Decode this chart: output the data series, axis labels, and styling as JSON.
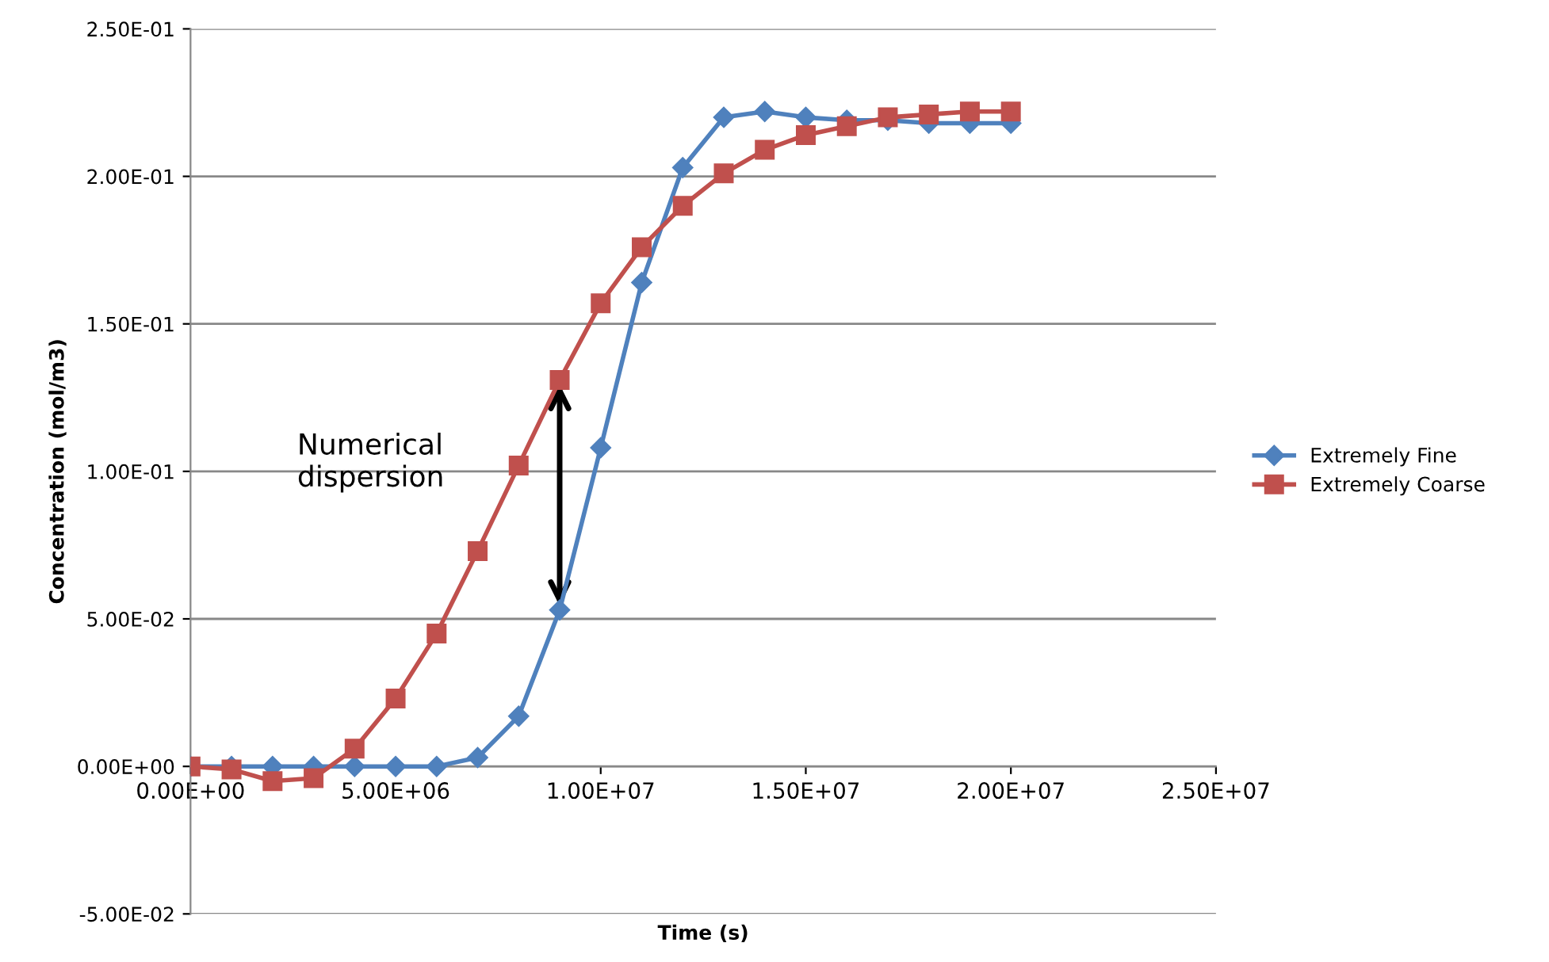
{
  "chart_data": {
    "type": "line",
    "xlabel": "Time (s)",
    "ylabel": "Concentration (mol/m3)",
    "x": [
      0,
      1000000,
      2000000,
      3000000,
      4000000,
      5000000,
      6000000,
      7000000,
      8000000,
      9000000,
      10000000,
      11000000,
      12000000,
      13000000,
      14000000,
      15000000,
      16000000,
      17000000,
      18000000,
      19000000,
      20000000
    ],
    "series": [
      {
        "name": "Extremely Fine",
        "color": "#4f81bd",
        "marker": "diamond",
        "values": [
          0,
          0,
          0,
          0,
          0,
          0,
          0,
          0.003,
          0.017,
          0.053,
          0.108,
          0.164,
          0.203,
          0.22,
          0.222,
          0.22,
          0.219,
          0.219,
          0.218,
          0.218,
          0.218
        ]
      },
      {
        "name": "Extremely Coarse",
        "color": "#c0504d",
        "marker": "square",
        "values": [
          0,
          -0.001,
          -0.005,
          -0.004,
          0.006,
          0.023,
          0.045,
          0.073,
          0.102,
          0.131,
          0.157,
          0.176,
          0.19,
          0.201,
          0.209,
          0.214,
          0.217,
          0.22,
          0.221,
          0.222,
          0.222
        ]
      }
    ],
    "xlim": [
      0,
      25000000
    ],
    "xticks": [
      {
        "value": 0,
        "label": "0.00E+00"
      },
      {
        "value": 5000000,
        "label": "5.00E+06"
      },
      {
        "value": 10000000,
        "label": "1.00E+07"
      },
      {
        "value": 15000000,
        "label": "1.50E+07"
      },
      {
        "value": 20000000,
        "label": "2.00E+07"
      },
      {
        "value": 25000000,
        "label": "2.50E+07"
      }
    ],
    "ylim": [
      -0.05,
      0.25
    ],
    "yticks": [
      {
        "value": -0.05,
        "label": "-5.00E-02"
      },
      {
        "value": 0,
        "label": "0.00E+00"
      },
      {
        "value": 0.05,
        "label": "5.00E-02"
      },
      {
        "value": 0.1,
        "label": "1.00E-01"
      },
      {
        "value": 0.15,
        "label": "1.50E-01"
      },
      {
        "value": 0.2,
        "label": "2.00E-01"
      },
      {
        "value": 0.25,
        "label": "2.50E-01"
      }
    ],
    "grid": "y",
    "legend": "right",
    "line_style": "solid",
    "annotations": [
      "Numerical dispersion"
    ]
  }
}
